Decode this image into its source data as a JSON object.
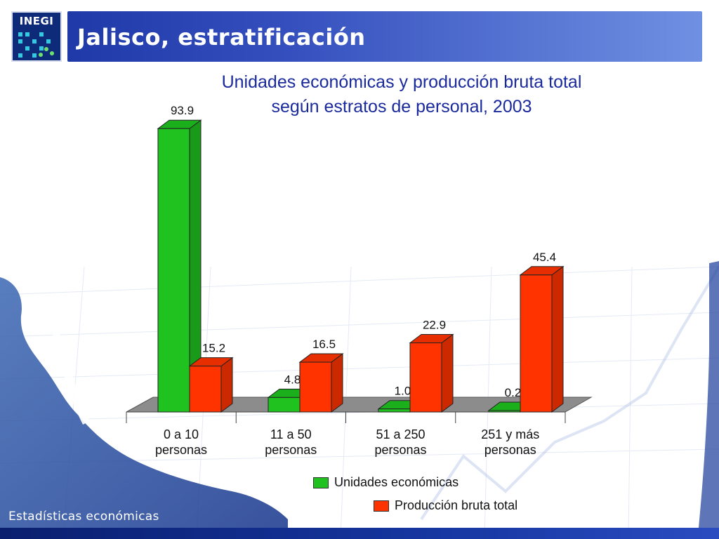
{
  "header": {
    "logo_text": "INEGI",
    "title": "Jalisco, estratificación"
  },
  "footer": {
    "label": "Estadísticas económicas"
  },
  "colors": {
    "header_start": "#1f3aa8",
    "header_end": "#6f90e2",
    "title_text": "#1a2a9c",
    "series_green": "#1fc21f",
    "series_red": "#ff3300",
    "floor": "#8c8c8c"
  },
  "chart_data": {
    "type": "bar",
    "title_lines": [
      "Unidades económicas y producción bruta total",
      "según estratos de personal, 2003"
    ],
    "categories": [
      [
        "0 a 10",
        "personas"
      ],
      [
        "11 a 50",
        "personas"
      ],
      [
        "51 a 250",
        "personas"
      ],
      [
        "251 y más",
        "personas"
      ]
    ],
    "series": [
      {
        "name": "Unidades económicas",
        "values": [
          93.9,
          4.8,
          1.0,
          0.2
        ],
        "labels": [
          "93.9",
          "4.8",
          "1.0",
          "0.2"
        ],
        "color": "#1fc21f"
      },
      {
        "name": "Producción bruta total",
        "values": [
          15.2,
          16.5,
          22.9,
          45.4
        ],
        "labels": [
          "15.2",
          "16.5",
          "22.9",
          "45.4"
        ],
        "color": "#ff3300"
      }
    ],
    "ylim": [
      0,
      100
    ],
    "grid": false,
    "style": "3d-clustered",
    "legend_position": "bottom"
  }
}
